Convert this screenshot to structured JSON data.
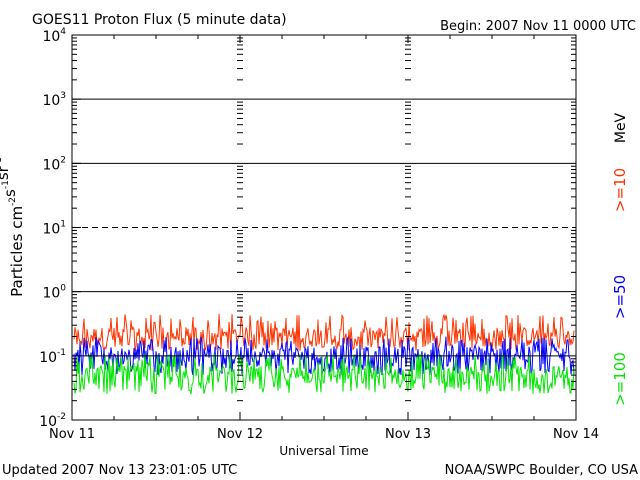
{
  "chart_data": {
    "type": "line",
    "title": "GOES11 Proton Flux (5 minute data)",
    "begin_label": "Begin: 2007 Nov 11 0000 UTC",
    "xlabel": "Universal Time",
    "ylabel_base": "Particles cm",
    "ylabel_parts": [
      {
        "text": "Particles cm",
        "sup": ""
      },
      {
        "text": "",
        "sup": "-2"
      },
      {
        "text": "s",
        "sup": "-1"
      },
      {
        "text": "sr",
        "sup": "-1"
      }
    ],
    "yscale": "log",
    "ylim": [
      0.01,
      10000
    ],
    "ytick_labels": [
      {
        "base": "10",
        "exp": "-2",
        "value": 0.01
      },
      {
        "base": "10",
        "exp": "-1",
        "value": 0.1
      },
      {
        "base": "10",
        "exp": "0",
        "value": 1
      },
      {
        "base": "10",
        "exp": "1",
        "value": 10
      },
      {
        "base": "10",
        "exp": "2",
        "value": 100
      },
      {
        "base": "10",
        "exp": "3",
        "value": 1000
      },
      {
        "base": "10",
        "exp": "4",
        "value": 10000
      }
    ],
    "hlines": [
      {
        "value": 1000,
        "style": "solid"
      },
      {
        "value": 100,
        "style": "solid"
      },
      {
        "value": 10,
        "style": "dashed"
      },
      {
        "value": 1,
        "style": "solid"
      },
      {
        "value": 0.1,
        "style": "solid"
      }
    ],
    "xlim": [
      "2007-11-11",
      "2007-11-14"
    ],
    "xtick_labels": [
      "Nov 11",
      "Nov 12",
      "Nov 13",
      "Nov 14"
    ],
    "legend_placement": "right",
    "legend_unit": "MeV",
    "series": [
      {
        "name": ">=10",
        "color": "#ff3300",
        "low": 0.12,
        "high": 0.45,
        "typical": 0.18
      },
      {
        "name": ">=50",
        "color": "#0000ff",
        "low": 0.05,
        "high": 0.2,
        "typical": 0.09
      },
      {
        "name": ">=100",
        "color": "#00e600",
        "low": 0.025,
        "high": 0.11,
        "typical": 0.045
      }
    ],
    "footer_left": "Updated 2007 Nov 13 23:01:05 UTC",
    "footer_right": "NOAA/SWPC Boulder, CO USA"
  }
}
